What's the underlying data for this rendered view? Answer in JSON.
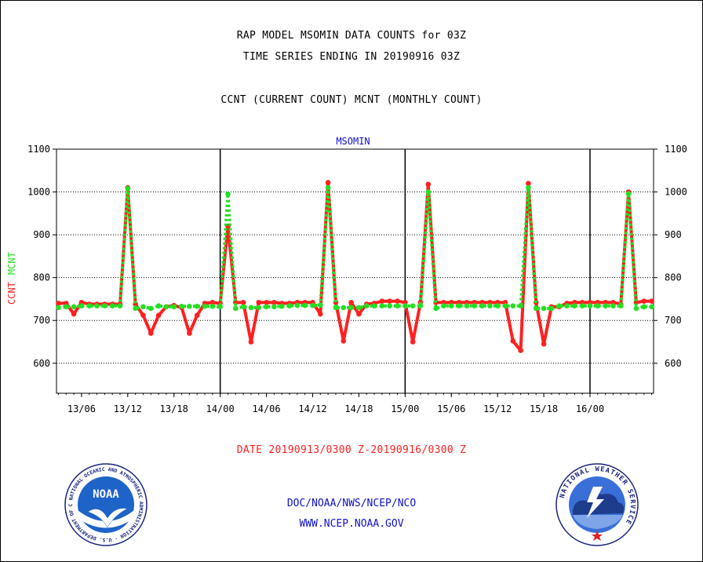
{
  "header": {
    "line1": "RAP MODEL MSOMIN DATA COUNTS for 03Z",
    "line2": "TIME SERIES ENDING IN 20190916 03Z",
    "line3": "CCNT (CURRENT COUNT) MCNT (MONTHLY COUNT)"
  },
  "colors": {
    "ccnt": "#ff2020",
    "mcnt": "#22e022",
    "footer": "#1010c8",
    "date": "#ff2020"
  },
  "chart_data": {
    "type": "line",
    "title": "MSOMIN",
    "ylabel_ccnt": "CCNT",
    "ylabel_mcnt": "MCNT",
    "ylim": [
      530,
      1100
    ],
    "yticks": [
      600,
      700,
      800,
      900,
      1000,
      1100
    ],
    "x_start_hour": 3,
    "x_step_hours": 1,
    "xticks": [
      {
        "hour": 6,
        "label": "13/06"
      },
      {
        "hour": 12,
        "label": "13/12"
      },
      {
        "hour": 18,
        "label": "13/18"
      },
      {
        "hour": 24,
        "label": "14/00"
      },
      {
        "hour": 30,
        "label": "14/06"
      },
      {
        "hour": 36,
        "label": "14/12"
      },
      {
        "hour": 42,
        "label": "14/18"
      },
      {
        "hour": 48,
        "label": "15/00"
      },
      {
        "hour": 54,
        "label": "15/06"
      },
      {
        "hour": 60,
        "label": "15/12"
      },
      {
        "hour": 66,
        "label": "15/18"
      },
      {
        "hour": 72,
        "label": "16/00"
      }
    ],
    "day_lines": [
      24,
      48,
      72
    ],
    "grid_y": true,
    "series": [
      {
        "name": "CCNT",
        "values": [
          740,
          740,
          715,
          742,
          738,
          738,
          738,
          738,
          738,
          1010,
          738,
          712,
          670,
          712,
          732,
          735,
          730,
          670,
          712,
          740,
          742,
          740,
          920,
          742,
          742,
          650,
          742,
          742,
          742,
          740,
          740,
          742,
          742,
          742,
          715,
          1022,
          742,
          652,
          742,
          715,
          738,
          740,
          745,
          745,
          745,
          742,
          650,
          742,
          1018,
          742,
          742,
          742,
          742,
          742,
          742,
          742,
          742,
          742,
          742,
          652,
          630,
          1020,
          742,
          645,
          732,
          732,
          740,
          742,
          742,
          742,
          742,
          742,
          742,
          738,
          1000,
          742,
          745,
          745
        ]
      },
      {
        "name": "MCNT",
        "values": [
          730,
          732,
          732,
          734,
          734,
          734,
          734,
          734,
          734,
          1008,
          728,
          732,
          728,
          734,
          732,
          732,
          733,
          733,
          733,
          733,
          733,
          732,
          995,
          728,
          732,
          730,
          730,
          732,
          732,
          733,
          734,
          735,
          735,
          735,
          736,
          1010,
          730,
          730,
          730,
          730,
          734,
          734,
          734,
          734,
          734,
          734,
          734,
          734,
          1000,
          728,
          734,
          734,
          734,
          734,
          734,
          734,
          734,
          734,
          734,
          734,
          734,
          1010,
          728,
          728,
          728,
          734,
          734,
          734,
          734,
          734,
          734,
          734,
          734,
          734,
          996,
          728,
          732,
          732
        ]
      }
    ]
  },
  "date_range": "DATE 20190913/0300 Z-20190916/0300 Z",
  "footer": {
    "org": "DOC/NOAA/NWS/NCEP/NCO",
    "url": "WWW.NCEP.NOAA.GOV"
  },
  "logos": {
    "noaa": {
      "name": "noaa-logo",
      "text": "NOAA",
      "ring": "NATIONAL OCEANIC AND ATMOSPHERIC ADMINISTRATION · U.S. DEPARTMENT OF COMMERCE"
    },
    "nws": {
      "name": "nws-logo",
      "ring": "NATIONAL WEATHER SERVICE"
    }
  }
}
